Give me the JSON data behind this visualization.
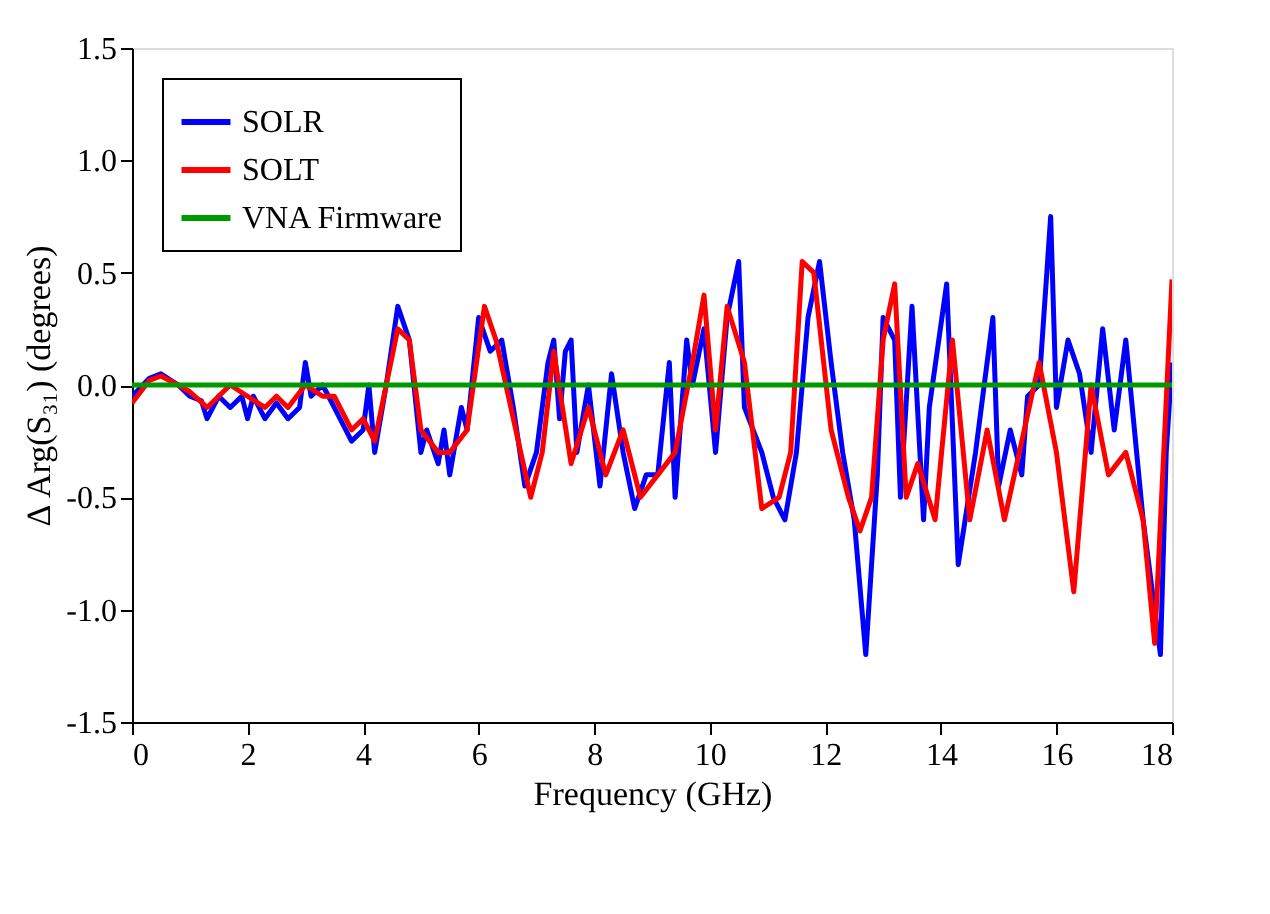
{
  "chart_data": {
    "type": "line",
    "xlabel": "Frequency (GHz)",
    "ylabel": "Δ Arg(S₃₁) (degrees)",
    "xlim": [
      0,
      18
    ],
    "xticks": [
      0,
      2,
      4,
      6,
      8,
      10,
      12,
      14,
      16,
      18
    ],
    "ylim": [
      -1.5,
      1.5
    ],
    "yticks": [
      -1.5,
      {
        "value": -1,
        "label": "-1.0"
      },
      -0.5,
      {
        "value": 0,
        "label": "0.0"
      },
      0.5,
      {
        "value": 1,
        "label": "1.0"
      },
      1.5
    ],
    "grid": false,
    "legend": "top left",
    "marker": "none",
    "line_style": "solid",
    "series": [
      {
        "name": "SOLR",
        "color": "#0000ff",
        "x": [
          0,
          0.3,
          0.5,
          0.8,
          1.0,
          1.2,
          1.3,
          1.5,
          1.7,
          1.9,
          2.0,
          2.1,
          2.3,
          2.5,
          2.7,
          2.9,
          3.0,
          3.1,
          3.3,
          3.5,
          3.8,
          4.0,
          4.1,
          4.2,
          4.4,
          4.6,
          4.8,
          5.0,
          5.1,
          5.3,
          5.4,
          5.5,
          5.7,
          5.8,
          6.0,
          6.2,
          6.4,
          6.6,
          6.8,
          7.0,
          7.2,
          7.3,
          7.4,
          7.5,
          7.6,
          7.7,
          7.9,
          8.1,
          8.3,
          8.5,
          8.7,
          8.9,
          9.1,
          9.3,
          9.4,
          9.6,
          9.7,
          9.9,
          10.1,
          10.3,
          10.5,
          10.6,
          10.9,
          11.1,
          11.3,
          11.5,
          11.7,
          11.9,
          12.1,
          12.3,
          12.5,
          12.7,
          12.9,
          13.0,
          13.2,
          13.3,
          13.5,
          13.7,
          13.8,
          14.1,
          14.3,
          14.6,
          14.9,
          15.0,
          15.2,
          15.4,
          15.5,
          15.7,
          15.9,
          16.0,
          16.2,
          16.4,
          16.6,
          16.8,
          17.0,
          17.2,
          17.5,
          17.8,
          17.9,
          18.0
        ],
        "values": [
          -0.05,
          0.03,
          0.05,
          0.0,
          -0.05,
          -0.07,
          -0.15,
          -0.05,
          -0.1,
          -0.05,
          -0.15,
          -0.05,
          -0.15,
          -0.08,
          -0.15,
          -0.1,
          0.1,
          -0.05,
          0.0,
          -0.1,
          -0.25,
          -0.2,
          0.0,
          -0.3,
          0.0,
          0.35,
          0.2,
          -0.3,
          -0.2,
          -0.35,
          -0.2,
          -0.4,
          -0.1,
          -0.2,
          0.3,
          0.15,
          0.2,
          -0.1,
          -0.45,
          -0.3,
          0.1,
          0.2,
          -0.15,
          0.15,
          0.2,
          -0.3,
          0.0,
          -0.45,
          0.05,
          -0.3,
          -0.55,
          -0.4,
          -0.4,
          0.1,
          -0.5,
          0.2,
          0.0,
          0.25,
          -0.3,
          0.3,
          0.55,
          -0.1,
          -0.3,
          -0.5,
          -0.6,
          -0.3,
          0.3,
          0.55,
          0.1,
          -0.3,
          -0.6,
          -1.2,
          -0.4,
          0.3,
          0.2,
          -0.5,
          0.35,
          -0.6,
          -0.1,
          0.45,
          -0.8,
          -0.3,
          0.3,
          -0.45,
          -0.2,
          -0.4,
          -0.05,
          0.0,
          0.75,
          -0.1,
          0.2,
          0.05,
          -0.3,
          0.25,
          -0.2,
          0.2,
          -0.6,
          -1.2,
          -0.3,
          0.1
        ]
      },
      {
        "name": "SOLT",
        "color": "#ff0000",
        "x": [
          0,
          0.3,
          0.5,
          0.8,
          1.0,
          1.3,
          1.5,
          1.7,
          2.0,
          2.3,
          2.5,
          2.7,
          3.0,
          3.3,
          3.5,
          3.8,
          4.0,
          4.2,
          4.4,
          4.6,
          4.8,
          5.0,
          5.3,
          5.5,
          5.8,
          6.1,
          6.3,
          6.6,
          6.9,
          7.1,
          7.3,
          7.6,
          7.9,
          8.2,
          8.5,
          8.8,
          9.1,
          9.4,
          9.7,
          9.9,
          10.1,
          10.3,
          10.6,
          10.9,
          11.2,
          11.4,
          11.6,
          11.8,
          12.1,
          12.4,
          12.6,
          12.8,
          13.0,
          13.2,
          13.4,
          13.6,
          13.9,
          14.2,
          14.5,
          14.8,
          15.1,
          15.4,
          15.7,
          16.0,
          16.3,
          16.6,
          16.9,
          17.2,
          17.5,
          17.7,
          18.0
        ],
        "values": [
          -0.08,
          0.02,
          0.04,
          0.0,
          -0.03,
          -0.1,
          -0.05,
          0.0,
          -0.05,
          -0.1,
          -0.05,
          -0.1,
          0.0,
          -0.05,
          -0.05,
          -0.2,
          -0.15,
          -0.25,
          0.0,
          0.25,
          0.2,
          -0.2,
          -0.3,
          -0.3,
          -0.2,
          0.35,
          0.2,
          -0.15,
          -0.5,
          -0.3,
          0.15,
          -0.35,
          -0.1,
          -0.4,
          -0.2,
          -0.5,
          -0.4,
          -0.3,
          0.1,
          0.4,
          -0.2,
          0.35,
          0.1,
          -0.55,
          -0.5,
          -0.3,
          0.55,
          0.5,
          -0.2,
          -0.5,
          -0.65,
          -0.5,
          0.2,
          0.45,
          -0.5,
          -0.35,
          -0.6,
          0.2,
          -0.6,
          -0.2,
          -0.6,
          -0.25,
          0.1,
          -0.3,
          -0.92,
          0.0,
          -0.4,
          -0.3,
          -0.6,
          -1.15,
          0.47
        ]
      },
      {
        "name": "VNA Firmware",
        "color": "#009900",
        "x": [
          0,
          18
        ],
        "values": [
          0.0,
          0.0
        ]
      }
    ]
  }
}
